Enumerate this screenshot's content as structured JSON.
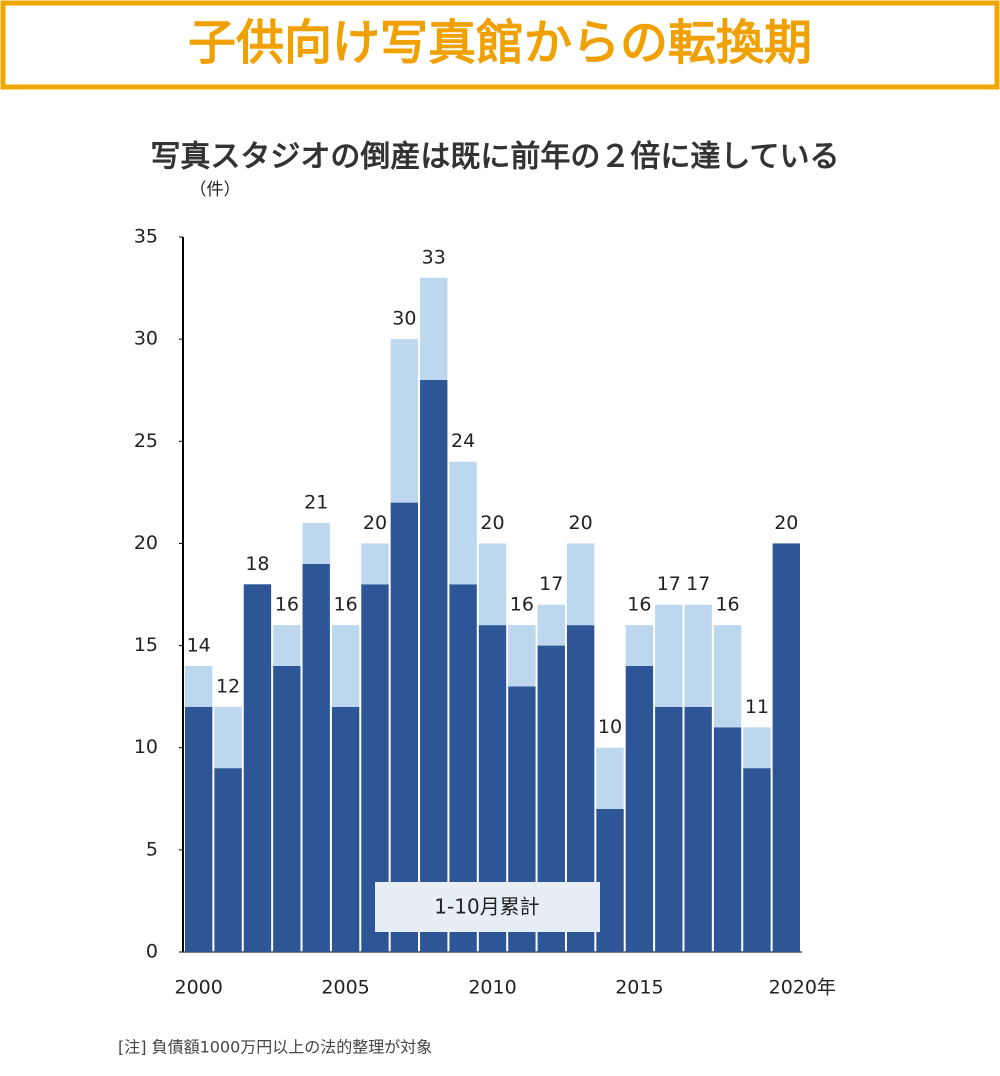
{
  "header": {
    "title": "子供向け写真館からの転換期"
  },
  "chart_data": {
    "type": "stacked-bar",
    "title": "写真スタジオの倒産は既に前年の２倍に達している",
    "y_unit": "（件）",
    "note": "[注] 負債額1000万円以上の法的整理が対象",
    "categories": [
      "2000",
      null,
      null,
      null,
      null,
      "2005",
      null,
      null,
      null,
      null,
      "2010",
      null,
      null,
      null,
      null,
      "2015",
      null,
      null,
      null,
      null,
      "2020年"
    ],
    "series": [
      {
        "name": "1-10月累計",
        "color": "#2e5595",
        "values": [
          12,
          9,
          18,
          14,
          19,
          12,
          18,
          22,
          28,
          18,
          16,
          13,
          15,
          16,
          7,
          14,
          12,
          12,
          11,
          9,
          20
        ]
      },
      {
        "color": "#bdd7ee",
        "values": [
          2,
          3,
          0,
          2,
          2,
          4,
          2,
          8,
          5,
          6,
          4,
          3,
          2,
          4,
          3,
          2,
          5,
          5,
          5,
          2,
          0
        ]
      }
    ],
    "totals": [
      14,
      12,
      18,
      16,
      21,
      16,
      20,
      30,
      33,
      24,
      20,
      16,
      17,
      20,
      10,
      16,
      17,
      17,
      16,
      11,
      20
    ],
    "ylim": [
      0,
      35
    ],
    "yticks": [
      0,
      5,
      10,
      15,
      20,
      25,
      30,
      35
    ]
  }
}
